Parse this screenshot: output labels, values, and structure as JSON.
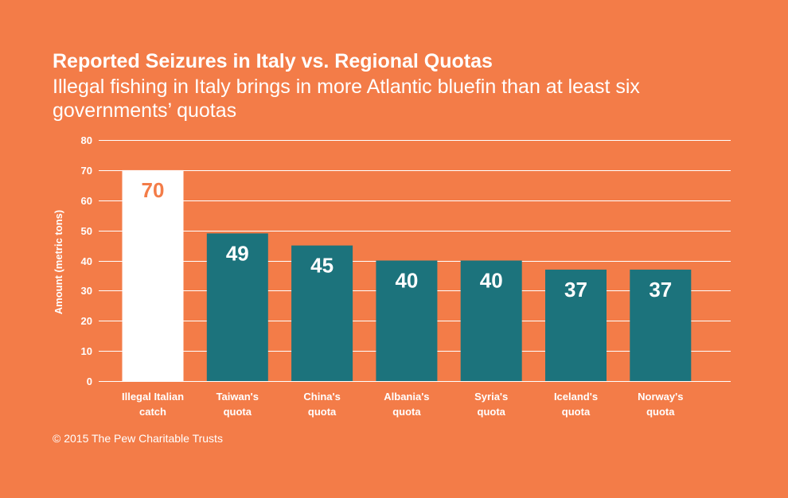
{
  "colors": {
    "background": "#f37c48",
    "highlight_bar": "#ffffff",
    "highlight_label": "#f37c48",
    "bar": "#1c737c",
    "bar_label": "#ffffff",
    "text": "#ffffff"
  },
  "header": {
    "title": "Reported Seizures in Italy vs. Regional Quotas",
    "subtitle": "Illegal fishing in Italy brings in more Atlantic bluefin than at least six governments’ quotas"
  },
  "footer": {
    "credit": "© 2015 The Pew Charitable Trusts"
  },
  "chart_data": {
    "type": "bar",
    "title": "Reported Seizures in Italy vs. Regional Quotas",
    "subtitle": "Illegal fishing in Italy brings in more Atlantic bluefin than at least six governments’ quotas",
    "xlabel": "",
    "ylabel": "Amount (metric tons)",
    "ylim": [
      0,
      80
    ],
    "yticks": [
      0,
      10,
      20,
      30,
      40,
      50,
      60,
      70,
      80
    ],
    "grid": true,
    "legend": "none",
    "categories": [
      [
        "Illegal Italian",
        "catch"
      ],
      [
        "Taiwan's",
        "quota"
      ],
      [
        "China's",
        "quota"
      ],
      [
        "Albania's",
        "quota"
      ],
      [
        "Syria's",
        "quota"
      ],
      [
        "Iceland's",
        "quota"
      ],
      [
        "Norway's",
        "quota"
      ]
    ],
    "values": [
      70,
      49,
      45,
      40,
      40,
      37,
      37
    ],
    "data_labels": [
      "70",
      "49",
      "45",
      "40",
      "40",
      "37",
      "37"
    ],
    "highlighted_category_index": 0
  }
}
